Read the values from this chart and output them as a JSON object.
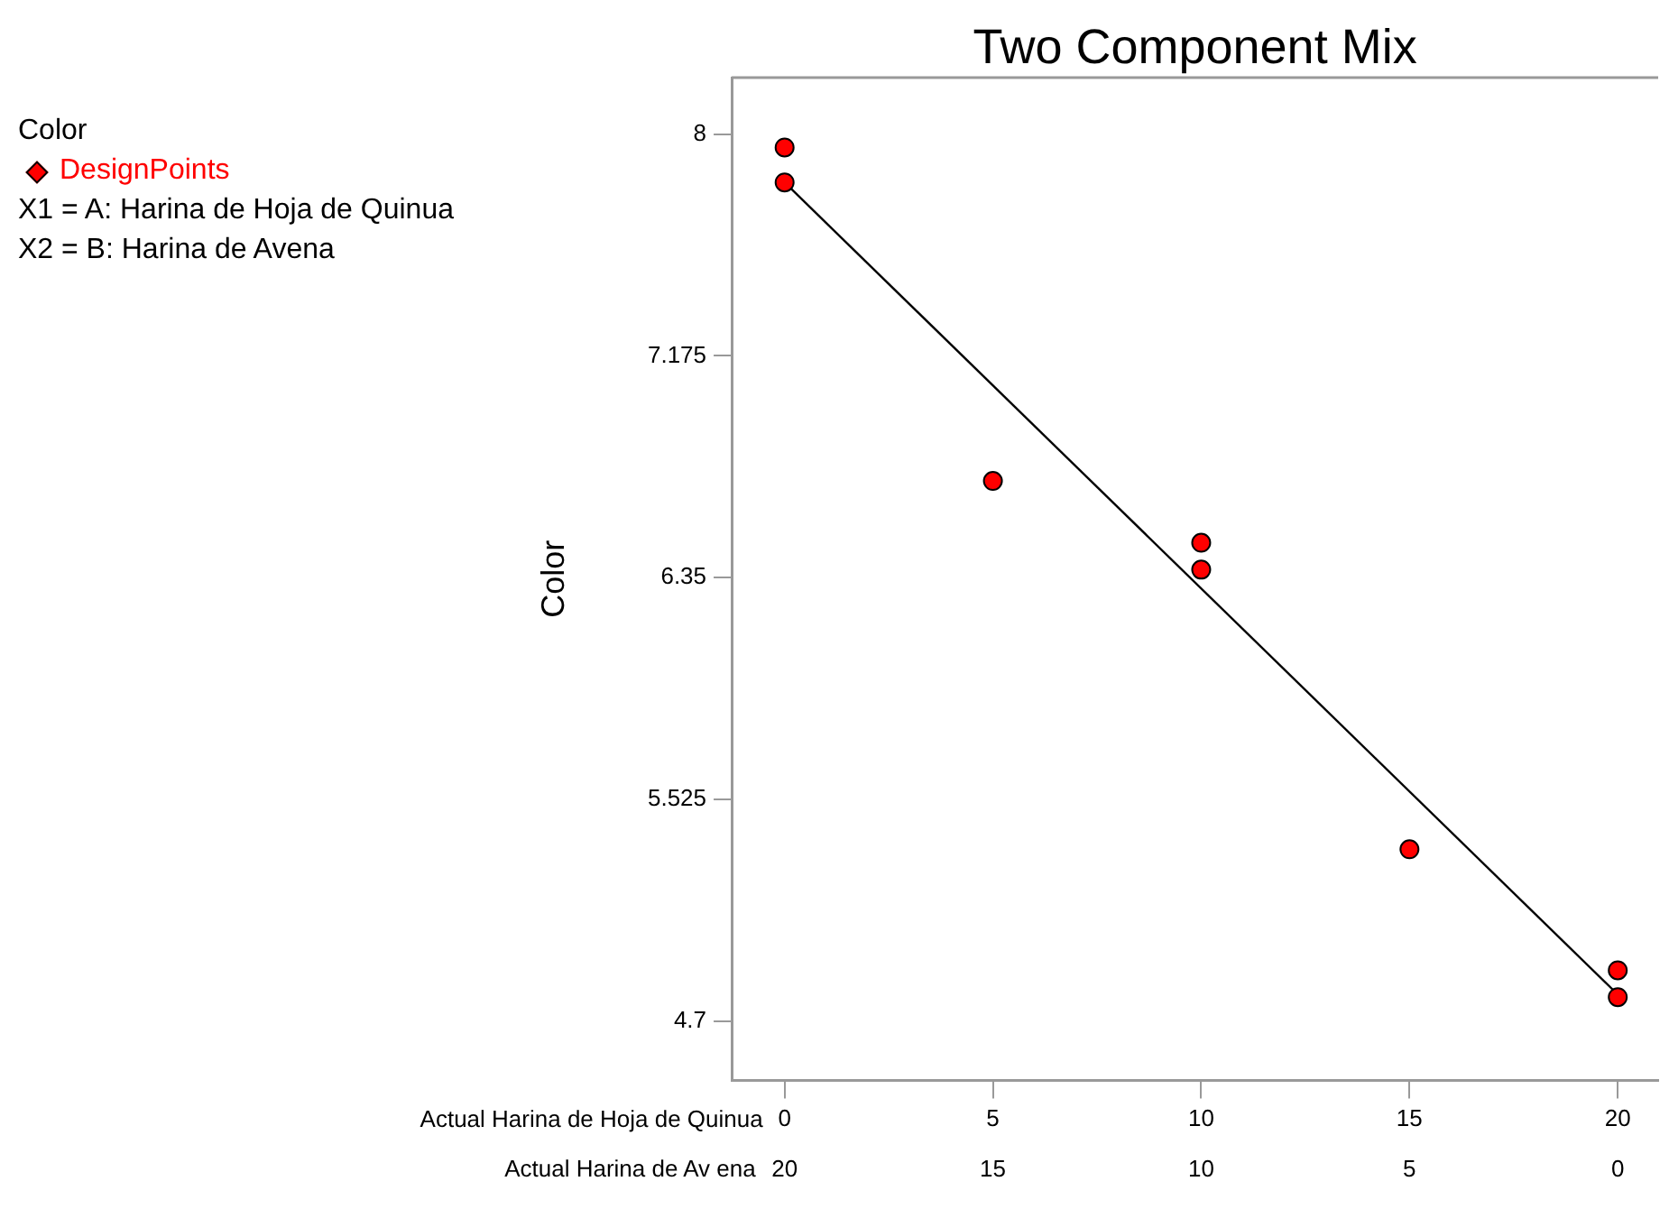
{
  "chart_data": {
    "type": "scatter",
    "title": "Two Component Mix",
    "ylabel": "Color",
    "xlabel": "Actual Harina de Hoja de Quinua",
    "x2label": "Actual Harina de Av ena",
    "legend_title": "Color",
    "legend": "top left",
    "marker": "circle",
    "annotations": [
      "X1 = A: Harina de Hoja de Quinua",
      "X2 = B: Harina de Avena"
    ],
    "xlim": [
      -1.27,
      20.97
    ],
    "xticks": [
      0,
      5,
      10,
      15,
      20
    ],
    "x2lim": [
      21.27,
      -0.97
    ],
    "x2ticks": [
      20,
      15,
      10,
      5,
      0
    ],
    "ylim": [
      4.48,
      8.21
    ],
    "yticks": [
      8,
      7.175,
      6.35,
      5.525,
      4.7
    ],
    "series": [
      {
        "name": "DesignPoints",
        "color": "#ff0000",
        "x": [
          0,
          0,
          5,
          10,
          10,
          15,
          20,
          20
        ],
        "values": [
          7.95,
          7.82,
          6.71,
          6.48,
          6.38,
          5.34,
          4.89,
          4.79
        ]
      },
      {
        "type": "line",
        "color": "#000000",
        "marker": "none",
        "x": [
          0,
          20
        ],
        "values": [
          7.82,
          4.8
        ]
      }
    ]
  }
}
